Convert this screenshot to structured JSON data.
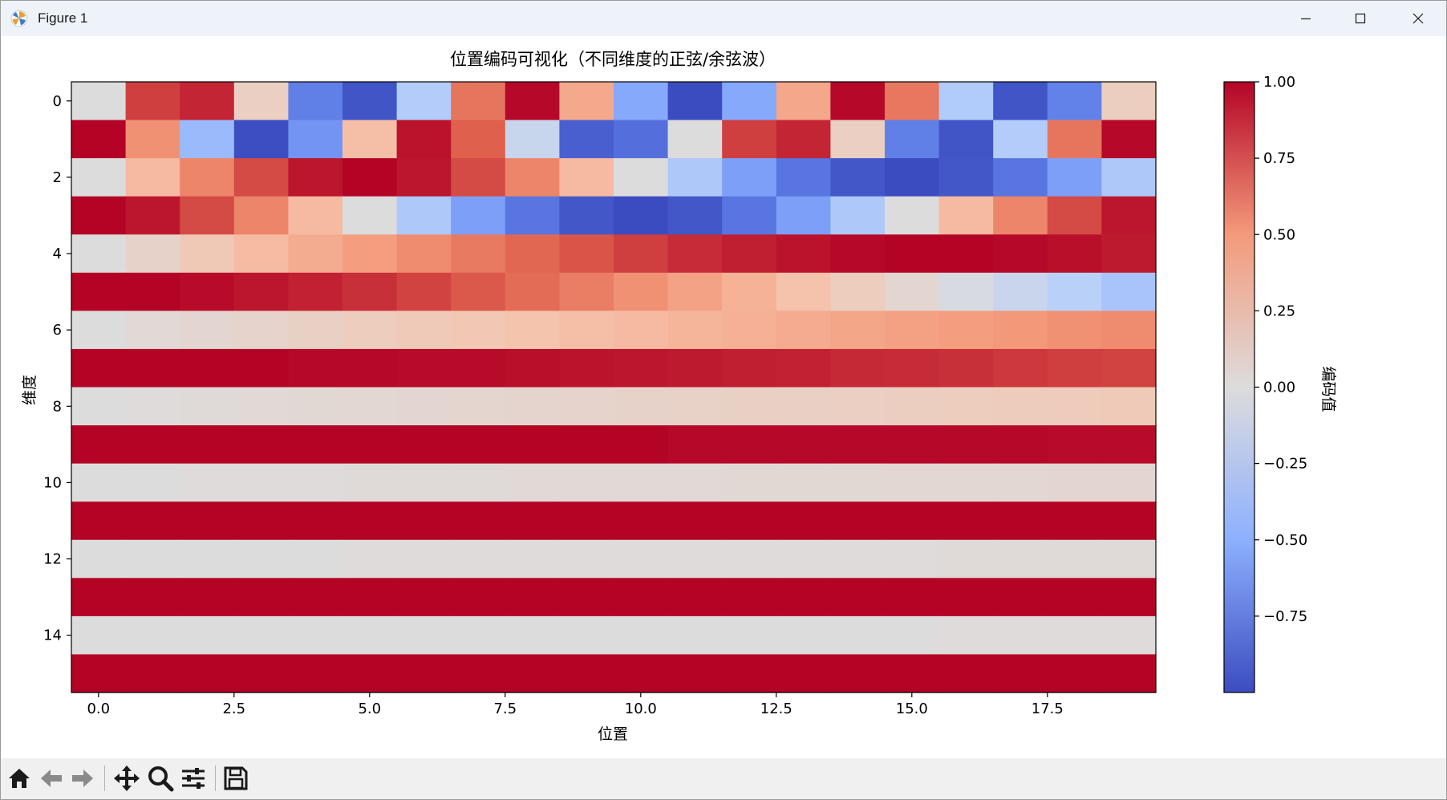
{
  "window": {
    "title": "Figure 1"
  },
  "chart_data": {
    "type": "heatmap",
    "title": "位置编码可视化（不同维度的正弦/余弦波）",
    "xlabel": "位置",
    "ylabel": "维度",
    "colorbar_label": "编码值",
    "colormap": "coolwarm",
    "vmin": -1.0,
    "vmax": 1.0,
    "x": [
      0,
      1,
      2,
      3,
      4,
      5,
      6,
      7,
      8,
      9,
      10,
      11,
      12,
      13,
      14,
      15,
      16,
      17,
      18,
      19
    ],
    "y": [
      0,
      1,
      2,
      3,
      4,
      5,
      6,
      7,
      8,
      9,
      10,
      11,
      12,
      13,
      14,
      15
    ],
    "x_ticks": [
      0.0,
      2.5,
      5.0,
      7.5,
      10.0,
      12.5,
      15.0,
      17.5
    ],
    "x_tick_labels": [
      "0.0",
      "2.5",
      "5.0",
      "7.5",
      "10.0",
      "12.5",
      "15.0",
      "17.5"
    ],
    "y_ticks": [
      0,
      2,
      4,
      6,
      8,
      10,
      12,
      14
    ],
    "y_tick_labels": [
      "0",
      "2",
      "4",
      "6",
      "8",
      "10",
      "12",
      "14"
    ],
    "colorbar_ticks": [
      1.0,
      0.75,
      0.5,
      0.25,
      0.0,
      -0.25,
      -0.5,
      -0.75
    ],
    "colorbar_tick_labels": [
      "1.00",
      "0.75",
      "0.50",
      "0.25",
      "0.00",
      "−0.25",
      "−0.50",
      "−0.75"
    ],
    "values": [
      [
        0.0,
        0.84,
        0.91,
        0.14,
        -0.76,
        -0.96,
        -0.28,
        0.66,
        0.99,
        0.41,
        -0.54,
        -1.0,
        -0.54,
        0.42,
        0.99,
        0.65,
        -0.29,
        -0.96,
        -0.75,
        0.15
      ],
      [
        1.0,
        0.54,
        -0.42,
        -0.99,
        -0.65,
        0.28,
        0.96,
        0.75,
        -0.15,
        -0.91,
        -0.84,
        0.0,
        0.84,
        0.91,
        0.14,
        -0.76,
        -0.96,
        -0.28,
        0.66,
        0.99
      ],
      [
        0.0,
        0.31,
        0.59,
        0.81,
        0.95,
        1.0,
        0.95,
        0.81,
        0.59,
        0.31,
        0.0,
        -0.31,
        -0.59,
        -0.81,
        -0.95,
        -1.0,
        -0.95,
        -0.81,
        -0.59,
        -0.31
      ],
      [
        1.0,
        0.95,
        0.81,
        0.59,
        0.31,
        0.0,
        -0.31,
        -0.59,
        -0.81,
        -0.95,
        -1.0,
        -0.95,
        -0.81,
        -0.59,
        -0.31,
        0.0,
        0.31,
        0.59,
        0.81,
        0.95
      ],
      [
        0.0,
        0.1,
        0.2,
        0.3,
        0.39,
        0.48,
        0.56,
        0.64,
        0.72,
        0.78,
        0.84,
        0.89,
        0.93,
        0.96,
        0.99,
        1.0,
        1.0,
        0.99,
        0.97,
        0.94
      ],
      [
        1.0,
        1.0,
        0.98,
        0.95,
        0.92,
        0.88,
        0.83,
        0.77,
        0.7,
        0.62,
        0.54,
        0.45,
        0.36,
        0.26,
        0.16,
        0.06,
        -0.04,
        -0.14,
        -0.24,
        -0.34
      ],
      [
        0.0,
        0.03,
        0.06,
        0.09,
        0.13,
        0.16,
        0.19,
        0.22,
        0.25,
        0.28,
        0.31,
        0.34,
        0.37,
        0.4,
        0.43,
        0.46,
        0.48,
        0.51,
        0.54,
        0.56
      ],
      [
        1.0,
        1.0,
        1.0,
        1.0,
        0.99,
        0.99,
        0.98,
        0.98,
        0.97,
        0.96,
        0.95,
        0.94,
        0.93,
        0.92,
        0.9,
        0.89,
        0.88,
        0.86,
        0.84,
        0.83
      ],
      [
        0.0,
        0.01,
        0.02,
        0.03,
        0.04,
        0.05,
        0.06,
        0.07,
        0.08,
        0.09,
        0.1,
        0.11,
        0.12,
        0.13,
        0.14,
        0.15,
        0.16,
        0.17,
        0.18,
        0.19
      ],
      [
        1.0,
        1.0,
        1.0,
        1.0,
        1.0,
        1.0,
        1.0,
        1.0,
        1.0,
        1.0,
        1.0,
        0.99,
        0.99,
        0.99,
        0.99,
        0.99,
        0.99,
        0.99,
        0.98,
        0.98
      ],
      [
        0.0,
        0.0,
        0.01,
        0.01,
        0.01,
        0.02,
        0.02,
        0.02,
        0.03,
        0.03,
        0.03,
        0.03,
        0.04,
        0.04,
        0.04,
        0.05,
        0.05,
        0.05,
        0.06,
        0.06
      ],
      [
        1.0,
        1.0,
        1.0,
        1.0,
        1.0,
        1.0,
        1.0,
        1.0,
        1.0,
        1.0,
        1.0,
        1.0,
        1.0,
        1.0,
        1.0,
        1.0,
        1.0,
        1.0,
        1.0,
        1.0
      ],
      [
        0.0,
        0.0,
        0.0,
        0.0,
        0.0,
        0.01,
        0.01,
        0.01,
        0.01,
        0.01,
        0.01,
        0.01,
        0.01,
        0.01,
        0.01,
        0.01,
        0.02,
        0.02,
        0.02,
        0.02
      ],
      [
        1.0,
        1.0,
        1.0,
        1.0,
        1.0,
        1.0,
        1.0,
        1.0,
        1.0,
        1.0,
        1.0,
        1.0,
        1.0,
        1.0,
        1.0,
        1.0,
        1.0,
        1.0,
        1.0,
        1.0
      ],
      [
        0.0,
        0.0,
        0.0,
        0.0,
        0.0,
        0.0,
        0.0,
        0.0,
        0.0,
        0.0,
        0.0,
        0.0,
        0.0,
        0.0,
        0.0,
        0.0,
        0.01,
        0.01,
        0.01,
        0.01
      ],
      [
        1.0,
        1.0,
        1.0,
        1.0,
        1.0,
        1.0,
        1.0,
        1.0,
        1.0,
        1.0,
        1.0,
        1.0,
        1.0,
        1.0,
        1.0,
        1.0,
        1.0,
        1.0,
        1.0,
        1.0
      ]
    ]
  },
  "toolbar": {
    "buttons": [
      {
        "name": "home-icon"
      },
      {
        "name": "back-icon"
      },
      {
        "name": "forward-icon"
      },
      {
        "name": "pan-icon"
      },
      {
        "name": "zoom-icon"
      },
      {
        "name": "configure-subplots-icon"
      },
      {
        "name": "save-icon"
      }
    ]
  }
}
